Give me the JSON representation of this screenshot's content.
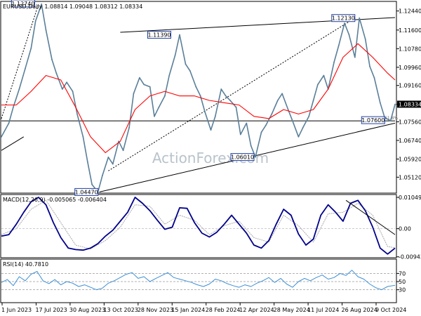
{
  "chart_data": {
    "type": "line",
    "title": "EURUSD,Daily",
    "ohlc": "1.08814 1.09048 1.08312 1.08334",
    "watermark": "ActionForex.com",
    "colors": {
      "price": "#5a7f99",
      "sma": "#ff0000",
      "trendline": "#000000",
      "channel_dotted": "#000000",
      "macd": "#00008b",
      "signal": "#a9a9a9",
      "rsi": "#3d8fd6",
      "grid": "#000000",
      "label_border": "#1f3fa8",
      "current_price_box": "#000000"
    },
    "x_tick_labels": [
      "1 Jun 2023",
      "17 Jul 2023",
      "30 Aug 2023",
      "13 Oct 2023",
      "28 Nov 2023",
      "15 Jan 2024",
      "28 Feb 2024",
      "12 Apr 2024",
      "28 May 2024",
      "11 Jul 2024",
      "26 Aug 2024",
      "9 Oct 2024"
    ],
    "price_panel": {
      "y_ticks": [
        "1.12440",
        "1.11600",
        "1.10780",
        "1.09960",
        "1.09160",
        "1.08334",
        "1.07560",
        "1.06740",
        "1.05920",
        "1.05120"
      ],
      "ylim": [
        1.0445,
        1.128
      ],
      "current_price": "1.08334",
      "horizontal_level": {
        "value": 1.076,
        "label": "61.8%"
      },
      "level_labels": [
        "1.12740",
        "1.11390",
        "1.12130",
        "1.04470",
        "1.06010",
        "1.07600"
      ],
      "series": [
        {
          "name": "price",
          "x": [
            0,
            5,
            8,
            12,
            16,
            20,
            23,
            27,
            30,
            34,
            37,
            41,
            44,
            48,
            51,
            55,
            58,
            61,
            65,
            68,
            72,
            75,
            79,
            82,
            86,
            89,
            93,
            96,
            100,
            103,
            106,
            110,
            113,
            117,
            120,
            124,
            127,
            131,
            134,
            137,
            141,
            144,
            148,
            151,
            154,
            158,
            161,
            165,
            168,
            171,
            175,
            178,
            182,
            186,
            189,
            193,
            196,
            200,
            203,
            207,
            210,
            213,
            217,
            220,
            224,
            227,
            231,
            234,
            238,
            241,
            245,
            248,
            251,
            255,
            258,
            262,
            265
          ],
          "y": [
            1.069,
            1.075,
            1.082,
            1.09,
            1.099,
            1.108,
            1.12,
            1.1274,
            1.116,
            1.103,
            1.097,
            1.09,
            1.093,
            1.089,
            1.079,
            1.069,
            1.058,
            1.048,
            1.0447,
            1.052,
            1.06,
            1.057,
            1.067,
            1.063,
            1.073,
            1.088,
            1.095,
            1.092,
            1.091,
            1.078,
            1.082,
            1.087,
            1.096,
            1.105,
            1.1139,
            1.101,
            1.098,
            1.091,
            1.087,
            1.08,
            1.072,
            1.078,
            1.09,
            1.087,
            1.085,
            1.082,
            1.07,
            1.075,
            1.065,
            1.0601,
            1.071,
            1.074,
            1.079,
            1.085,
            1.088,
            1.081,
            1.076,
            1.069,
            1.073,
            1.078,
            1.085,
            1.092,
            1.096,
            1.09,
            1.102,
            1.109,
            1.119,
            1.114,
            1.104,
            1.1213,
            1.112,
            1.1,
            1.095,
            1.084,
            1.0775,
            1.076,
            1.0833
          ]
        },
        {
          "name": "sma",
          "x": [
            0,
            10,
            20,
            30,
            40,
            50,
            60,
            70,
            80,
            90,
            100,
            110,
            120,
            130,
            140,
            150,
            160,
            170,
            180,
            190,
            200,
            210,
            220,
            230,
            240,
            250,
            260,
            265
          ],
          "y": [
            1.083,
            1.083,
            1.089,
            1.096,
            1.094,
            1.082,
            1.069,
            1.062,
            1.067,
            1.081,
            1.087,
            1.089,
            1.087,
            1.087,
            1.085,
            1.084,
            1.083,
            1.078,
            1.077,
            1.081,
            1.079,
            1.081,
            1.09,
            1.104,
            1.11,
            1.104,
            1.097,
            1.094
          ]
        }
      ],
      "trendlines": [
        {
          "style": "solid",
          "x": [
            80,
            265
          ],
          "y": [
            1.115,
            1.1215
          ]
        },
        {
          "style": "solid",
          "x": [
            66,
            265
          ],
          "y": [
            1.0447,
            1.075
          ]
        },
        {
          "style": "solid",
          "x": [
            0,
            15
          ],
          "y": [
            1.063,
            1.069
          ]
        },
        {
          "style": "dotted",
          "x": [
            0,
            25
          ],
          "y": [
            1.077,
            1.1274
          ]
        },
        {
          "style": "dotted",
          "x": [
            72,
            238
          ],
          "y": [
            1.054,
            1.1213
          ]
        }
      ]
    },
    "macd_panel": {
      "label": "MACD(12,26,9) -0.005065 -0.006404",
      "y_ticks": [
        "0.01049",
        "0.00",
        "-0.009435"
      ],
      "ylim": [
        -0.0095,
        0.0105
      ],
      "series": [
        {
          "name": "macd",
          "x": [
            0,
            5,
            10,
            15,
            20,
            25,
            30,
            35,
            40,
            45,
            50,
            55,
            60,
            65,
            70,
            75,
            80,
            85,
            90,
            95,
            100,
            105,
            110,
            115,
            120,
            125,
            130,
            135,
            140,
            145,
            150,
            155,
            160,
            165,
            170,
            175,
            180,
            185,
            190,
            195,
            200,
            205,
            210,
            215,
            220,
            225,
            230,
            235,
            240,
            245,
            250,
            255,
            260,
            265
          ],
          "y": [
            -0.0025,
            -0.002,
            0.0015,
            0.0055,
            0.009,
            0.0105,
            0.008,
            0.002,
            -0.003,
            -0.0065,
            -0.007,
            -0.0072,
            -0.0065,
            -0.005,
            -0.0025,
            -0.0005,
            0.0025,
            0.0055,
            0.0105,
            0.0085,
            0.006,
            0.0028,
            -0.0002,
            0.0005,
            0.007,
            0.0068,
            0.002,
            -0.0015,
            -0.0028,
            -0.0012,
            0.0015,
            0.0045,
            0.0015,
            -0.0015,
            -0.0055,
            -0.0065,
            -0.004,
            0.0015,
            0.0065,
            0.0045,
            -0.0018,
            -0.0055,
            -0.0035,
            0.0045,
            0.008,
            0.0055,
            0.0025,
            0.0085,
            0.0095,
            0.006,
            0.0005,
            -0.0065,
            -0.0085,
            -0.0065
          ]
        },
        {
          "name": "signal",
          "x": [
            0,
            10,
            20,
            30,
            40,
            50,
            60,
            70,
            80,
            90,
            100,
            110,
            120,
            130,
            140,
            150,
            160,
            170,
            180,
            190,
            200,
            210,
            220,
            230,
            240,
            250,
            260,
            265
          ],
          "y": [
            -0.002,
            0.0,
            0.0065,
            0.0095,
            0.002,
            -0.0055,
            -0.0068,
            -0.004,
            0.0005,
            0.008,
            0.0075,
            0.0015,
            0.0045,
            0.0028,
            -0.002,
            0.001,
            0.0025,
            -0.003,
            -0.0045,
            0.0045,
            0.001,
            -0.0045,
            0.005,
            0.0055,
            0.0085,
            0.0045,
            -0.006,
            -0.0064
          ]
        }
      ],
      "trendline": {
        "x": [
          232,
          265
        ],
        "y": [
          0.0095,
          -0.002
        ]
      }
    },
    "rsi_panel": {
      "label": "RSI(14) 40.7810",
      "y_ticks": [
        "70",
        "50",
        "30"
      ],
      "ylim": [
        0,
        100
      ],
      "series": [
        {
          "name": "rsi",
          "x": [
            0,
            4,
            8,
            12,
            16,
            20,
            24,
            28,
            32,
            36,
            40,
            44,
            48,
            52,
            56,
            60,
            64,
            68,
            72,
            76,
            80,
            84,
            88,
            92,
            96,
            100,
            104,
            108,
            112,
            116,
            120,
            124,
            128,
            132,
            136,
            140,
            144,
            148,
            152,
            156,
            160,
            164,
            168,
            172,
            176,
            180,
            184,
            188,
            192,
            196,
            200,
            204,
            208,
            212,
            216,
            220,
            224,
            228,
            232,
            236,
            240,
            244,
            248,
            252,
            256,
            260,
            265
          ],
          "y": [
            48,
            55,
            40,
            62,
            52,
            68,
            75,
            52,
            45,
            55,
            42,
            50,
            46,
            38,
            42,
            36,
            30,
            34,
            46,
            52,
            60,
            68,
            72,
            58,
            62,
            50,
            58,
            65,
            72,
            60,
            56,
            52,
            48,
            42,
            38,
            44,
            56,
            52,
            45,
            40,
            36,
            42,
            38,
            46,
            52,
            60,
            48,
            58,
            44,
            36,
            50,
            58,
            52,
            60,
            66,
            56,
            60,
            70,
            65,
            78,
            62,
            56,
            44,
            35,
            30,
            38,
            41
          ]
        }
      ]
    }
  }
}
